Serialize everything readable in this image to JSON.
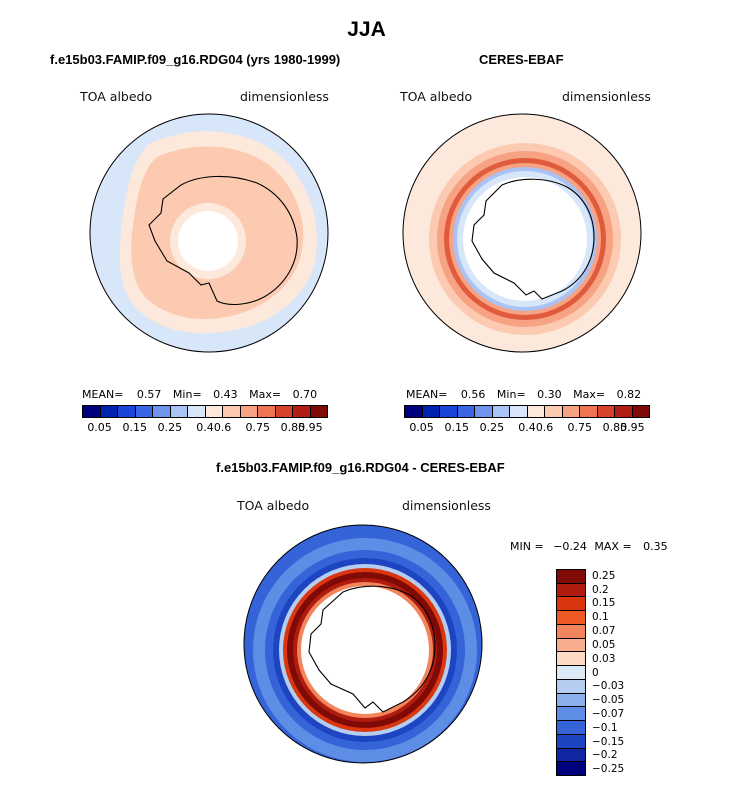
{
  "title": "JJA",
  "panel_left": {
    "title": "f.e15b03.FAMIP.f09_g16.RDG04 (yrs 1980-1999)",
    "variable": "TOA albedo",
    "units": "dimensionless",
    "stats": {
      "mean_label": "MEAN=",
      "mean": "0.57",
      "min_label": "Min=",
      "min": "0.43",
      "max_label": "Max=",
      "max": "0.70"
    }
  },
  "panel_right": {
    "title": "CERES-EBAF",
    "variable": "TOA albedo",
    "units": "dimensionless",
    "stats": {
      "mean_label": "MEAN=",
      "mean": "0.56",
      "min_label": "Min=",
      "min": "0.30",
      "max_label": "Max=",
      "max": "0.82"
    }
  },
  "panel_diff": {
    "title": "f.e15b03.FAMIP.f09_g16.RDG04 - CERES-EBAF",
    "variable": "TOA albedo",
    "units": "dimensionless",
    "minmax": {
      "min_label": "MIN =",
      "min": "−0.24",
      "max_label": "MAX =",
      "max": "0.35"
    }
  },
  "colorbar_abs": {
    "colors": [
      "#00007f",
      "#0022b0",
      "#1a45d8",
      "#3a66e6",
      "#6f94ee",
      "#a8c3f4",
      "#d7e6f9",
      "#fde9dc",
      "#fbcab0",
      "#f6a283",
      "#ee7453",
      "#d6422b",
      "#b31d14",
      "#800a05"
    ],
    "labels": [
      "0.05",
      "0.15",
      "0.25",
      "0.4",
      "0.6",
      "0.75",
      "0.85",
      "0.95"
    ],
    "label_edges": [
      1,
      3,
      5,
      7,
      8,
      10,
      12,
      13
    ]
  },
  "colorbar_diff": {
    "colors": [
      "#800a05",
      "#b01c0f",
      "#da360f",
      "#ee5a24",
      "#f2855b",
      "#f7ad8e",
      "#fcdac4",
      "#dce9f6",
      "#b4cdf1",
      "#8ab0eb",
      "#5e8de5",
      "#3464d8",
      "#1d45c2",
      "#1027a3",
      "#00007f"
    ],
    "labels": [
      "0.25",
      "0.2",
      "0.15",
      "0.1",
      "0.07",
      "0.05",
      "0.03",
      "0",
      "−0.03",
      "−0.05",
      "−0.07",
      "−0.1",
      "−0.15",
      "−0.2",
      "−0.25"
    ]
  }
}
